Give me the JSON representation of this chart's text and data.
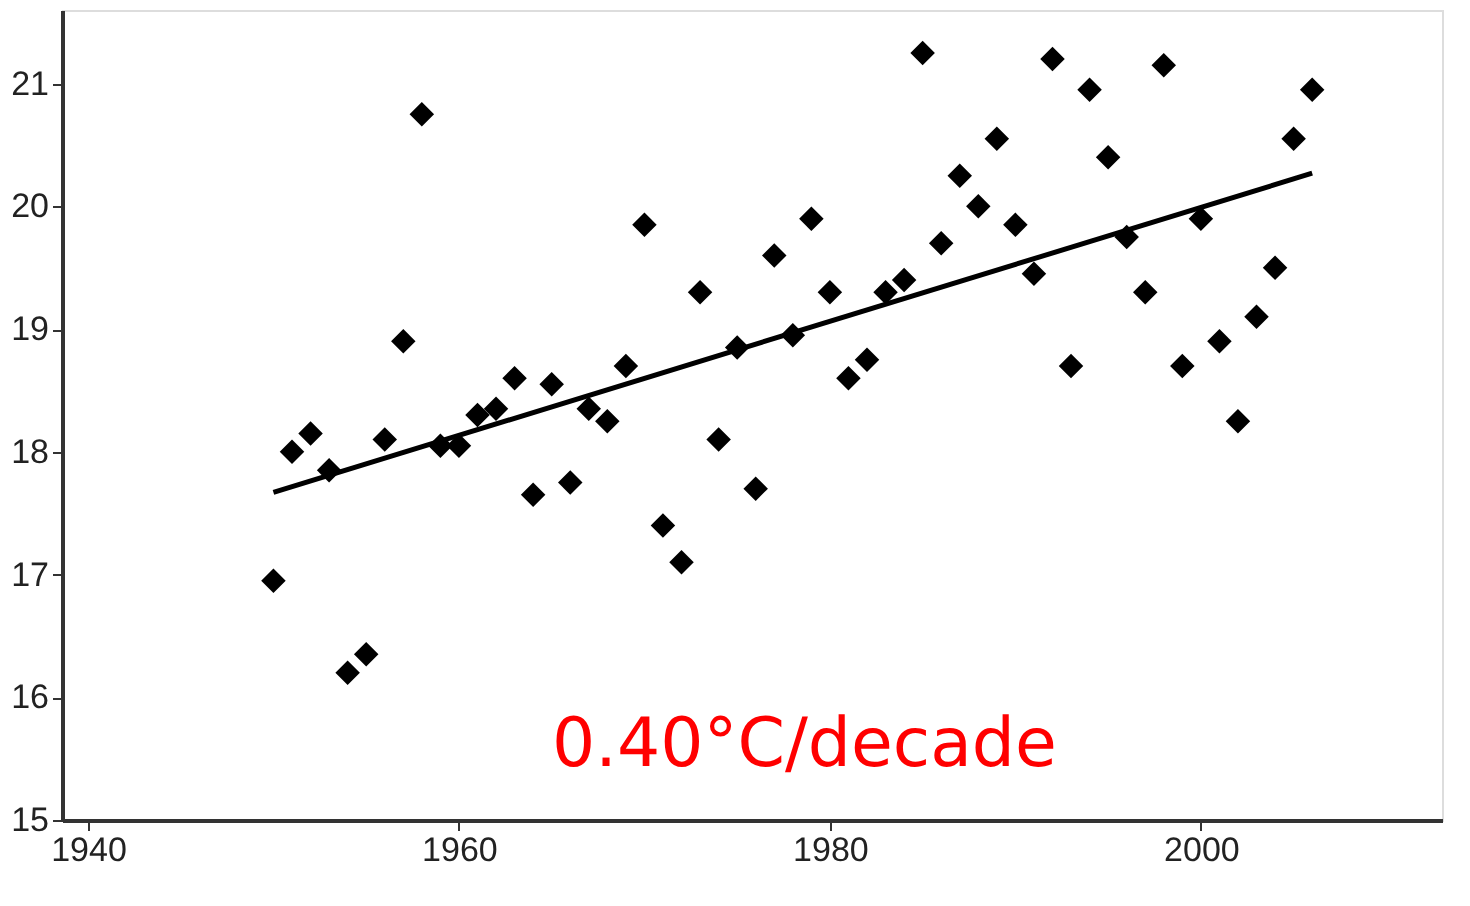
{
  "chart_data": {
    "type": "scatter",
    "x": [
      1950,
      1951,
      1952,
      1953,
      1954,
      1955,
      1956,
      1957,
      1958,
      1959,
      1960,
      1961,
      1962,
      1963,
      1964,
      1965,
      1966,
      1967,
      1968,
      1969,
      1970,
      1971,
      1972,
      1973,
      1974,
      1975,
      1976,
      1977,
      1978,
      1979,
      1980,
      1981,
      1982,
      1983,
      1984,
      1985,
      1986,
      1987,
      1988,
      1989,
      1990,
      1991,
      1992,
      1993,
      1994,
      1995,
      1996,
      1997,
      1998,
      1999,
      2000,
      2001,
      2002,
      2003,
      2004,
      2005,
      2006
    ],
    "series": [
      {
        "color": "#000000",
        "marker": "diamond",
        "values": [
          16.95,
          18.0,
          18.15,
          17.85,
          16.2,
          16.35,
          18.1,
          18.9,
          20.75,
          18.05,
          18.05,
          18.3,
          18.35,
          18.6,
          17.65,
          18.55,
          17.75,
          18.35,
          18.25,
          18.7,
          19.85,
          17.4,
          17.1,
          19.3,
          18.1,
          18.85,
          17.7,
          19.6,
          18.95,
          19.9,
          19.3,
          18.6,
          18.75,
          19.3,
          19.4,
          21.25,
          19.7,
          20.25,
          20.0,
          20.55,
          19.85,
          19.45,
          21.2,
          18.7,
          20.95,
          20.4,
          19.75,
          19.3,
          21.15,
          18.7,
          19.9,
          18.9,
          18.25,
          19.1,
          19.5,
          20.55,
          20.95
        ]
      },
      {
        "type": "line",
        "color": "#000000",
        "line_style": "solid",
        "x": [
          1950,
          2006
        ],
        "values": [
          17.67,
          20.27
        ]
      }
    ],
    "annotations": [
      "0.40°C/decade"
    ],
    "xlim": [
      1938.6,
      2013
    ],
    "ylim": [
      15,
      21.6
    ],
    "xticks": [
      1940,
      1960,
      1980,
      2000
    ],
    "yticks": [
      15,
      16,
      17,
      18,
      19,
      20,
      21
    ],
    "grid": false
  }
}
